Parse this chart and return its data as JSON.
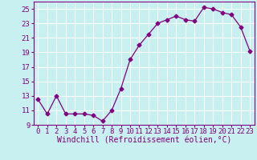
{
  "x": [
    0,
    1,
    2,
    3,
    4,
    5,
    6,
    7,
    8,
    9,
    10,
    11,
    12,
    13,
    14,
    15,
    16,
    17,
    18,
    19,
    20,
    21,
    22,
    23
  ],
  "y": [
    12.5,
    10.5,
    13.0,
    10.5,
    10.5,
    10.5,
    10.3,
    9.5,
    11.0,
    14.0,
    18.0,
    20.0,
    21.5,
    23.0,
    23.5,
    24.0,
    23.5,
    23.3,
    25.2,
    25.0,
    24.5,
    24.2,
    22.5,
    19.2
  ],
  "line_color": "#800080",
  "marker": "D",
  "marker_size": 2.5,
  "bg_color": "#c8f0f0",
  "grid_color": "#ffffff",
  "xlabel": "Windchill (Refroidissement éolien,°C)",
  "xlim": [
    -0.5,
    23.5
  ],
  "ylim": [
    9,
    26
  ],
  "yticks": [
    9,
    11,
    13,
    15,
    17,
    19,
    21,
    23,
    25
  ],
  "xticks": [
    0,
    1,
    2,
    3,
    4,
    5,
    6,
    7,
    8,
    9,
    10,
    11,
    12,
    13,
    14,
    15,
    16,
    17,
    18,
    19,
    20,
    21,
    22,
    23
  ],
  "font_color": "#800080",
  "axis_label_fontsize": 7.0,
  "tick_fontsize": 6.5
}
